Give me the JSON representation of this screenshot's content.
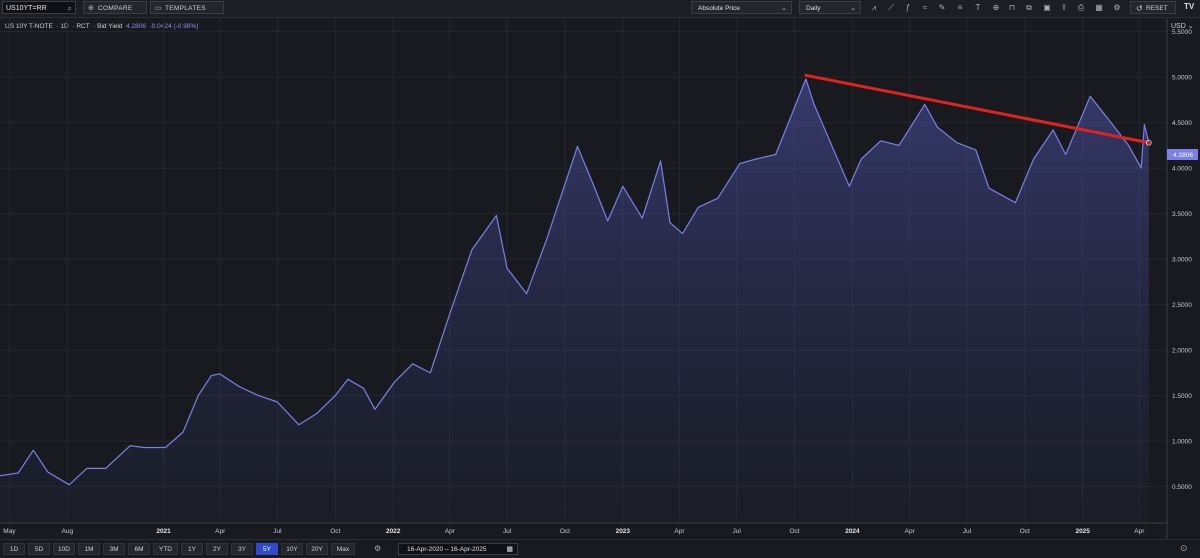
{
  "toolbar": {
    "ticker": "US10YT=RR",
    "compare_label": "COMPARE",
    "templates_label": "TEMPLATES",
    "price_mode": "Absolute Price",
    "interval": "Daily",
    "reset_label": "RESET"
  },
  "legend": {
    "name": "US 10Y T-NOTE",
    "interval": "1D",
    "source": "RCT",
    "field": "Bid Yield",
    "value": "4.2806",
    "change": "-0.0424 (-0.98%)"
  },
  "currency": "USD",
  "last_value_label": "4.2806",
  "periods": [
    "1D",
    "5D",
    "10D",
    "1M",
    "3M",
    "6M",
    "YTD",
    "1Y",
    "2Y",
    "3Y",
    "5Y",
    "10Y",
    "20Y",
    "Max"
  ],
  "active_period": "5Y",
  "date_range": "16-Apr-2020  –  16-Apr-2025",
  "colors": {
    "series": "#7b80e8",
    "trendline": "#e0231f",
    "active": "#2e49c9",
    "background": "#181a1f"
  },
  "chart_data": {
    "type": "area",
    "series": [
      {
        "x": [
          "2020-04-16",
          "2020-05-15",
          "2020-06-08",
          "2020-07-01",
          "2020-08-04",
          "2020-09-01",
          "2020-10-01",
          "2020-11-09",
          "2020-12-01",
          "2021-01-04",
          "2021-02-01",
          "2021-02-25",
          "2021-03-18",
          "2021-03-31",
          "2021-05-01",
          "2021-06-01",
          "2021-07-01",
          "2021-08-04",
          "2021-09-01",
          "2021-10-01",
          "2021-10-21",
          "2021-11-15",
          "2021-12-03",
          "2022-01-03",
          "2022-02-01",
          "2022-03-01",
          "2022-04-01",
          "2022-05-06",
          "2022-06-14",
          "2022-07-01",
          "2022-08-01",
          "2022-09-01",
          "2022-10-21",
          "2022-11-15",
          "2022-12-08",
          "2023-01-01",
          "2023-02-01",
          "2023-03-02",
          "2023-03-17",
          "2023-04-06",
          "2023-05-01",
          "2023-06-01",
          "2023-07-06",
          "2023-08-01",
          "2023-09-01",
          "2023-10-19",
          "2023-11-01",
          "2023-12-27",
          "2024-01-15",
          "2024-02-15",
          "2024-03-15",
          "2024-04-25",
          "2024-05-15",
          "2024-06-15",
          "2024-07-15",
          "2024-08-05",
          "2024-09-16",
          "2024-10-15",
          "2024-11-15",
          "2024-12-05",
          "2025-01-13",
          "2025-02-15",
          "2025-03-15",
          "2025-04-04",
          "2025-04-09",
          "2025-04-16"
        ],
        "y": [
          0.62,
          0.65,
          0.9,
          0.66,
          0.52,
          0.7,
          0.7,
          0.95,
          0.93,
          0.93,
          1.1,
          1.5,
          1.72,
          1.74,
          1.6,
          1.5,
          1.43,
          1.18,
          1.3,
          1.5,
          1.68,
          1.58,
          1.35,
          1.65,
          1.85,
          1.75,
          2.4,
          3.1,
          3.48,
          2.9,
          2.62,
          3.2,
          4.24,
          3.82,
          3.42,
          3.8,
          3.45,
          4.08,
          3.4,
          3.28,
          3.57,
          3.67,
          4.05,
          4.1,
          4.15,
          4.98,
          4.7,
          3.8,
          4.1,
          4.3,
          4.25,
          4.7,
          4.45,
          4.28,
          4.2,
          3.78,
          3.62,
          4.1,
          4.42,
          4.15,
          4.79,
          4.5,
          4.25,
          4.0,
          4.48,
          4.28
        ]
      }
    ],
    "trendline": {
      "x": [
        "2023-10-19",
        "2025-04-16"
      ],
      "y": [
        5.02,
        4.28
      ]
    },
    "y_ticks": [
      "0.5000",
      "1.0000",
      "1.5000",
      "2.0000",
      "2.5000",
      "3.0000",
      "3.5000",
      "4.0000",
      "4.5000",
      "5.0000",
      "5.5000"
    ],
    "ylim": [
      0.1,
      5.65
    ],
    "x_ticks": [
      {
        "label": "May",
        "date": "2020-05-01"
      },
      {
        "label": "Aug",
        "date": "2020-08-01"
      },
      {
        "label": "2021",
        "date": "2021-01-01"
      },
      {
        "label": "Apr",
        "date": "2021-04-01"
      },
      {
        "label": "Jul",
        "date": "2021-07-01"
      },
      {
        "label": "Oct",
        "date": "2021-10-01"
      },
      {
        "label": "2022",
        "date": "2022-01-01"
      },
      {
        "label": "Apr",
        "date": "2022-04-01"
      },
      {
        "label": "Jul",
        "date": "2022-07-01"
      },
      {
        "label": "Oct",
        "date": "2022-10-01"
      },
      {
        "label": "2023",
        "date": "2023-01-01"
      },
      {
        "label": "Apr",
        "date": "2023-04-01"
      },
      {
        "label": "Jul",
        "date": "2023-07-01"
      },
      {
        "label": "Oct",
        "date": "2023-10-01"
      },
      {
        "label": "2024",
        "date": "2024-01-01"
      },
      {
        "label": "Apr",
        "date": "2024-04-01"
      },
      {
        "label": "Jul",
        "date": "2024-07-01"
      },
      {
        "label": "Oct",
        "date": "2024-10-01"
      },
      {
        "label": "2025",
        "date": "2025-01-01"
      },
      {
        "label": "Apr",
        "date": "2025-04-01"
      }
    ],
    "xlim": [
      "2020-04-16",
      "2025-05-15"
    ],
    "grid": true
  }
}
